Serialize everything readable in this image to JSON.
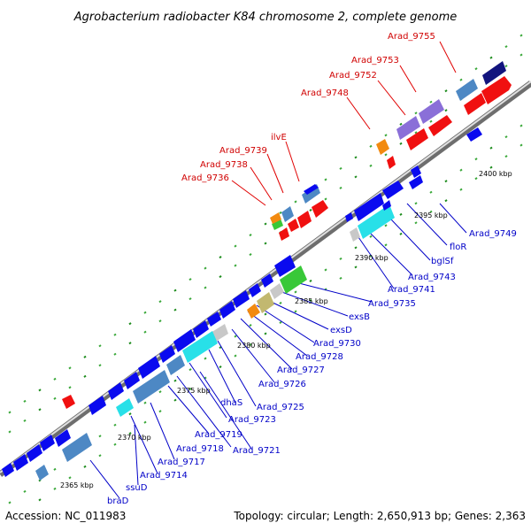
{
  "header": {
    "title": "Agrobacterium radiobacter K84 chromosome 2, complete genome"
  },
  "footer": {
    "accession": "Accession: NC_011983",
    "topology": "Topology: circular; Length: 2,650,913 bp; Genes: 2,363"
  },
  "colors": {
    "blue": "#0a0aef",
    "steel": "#4d88c4",
    "red": "#f01010",
    "purple": "#8a6fd8",
    "navy": "#12147e",
    "cyan": "#28e0e8",
    "green": "#38c838",
    "orange": "#f28a10",
    "olive": "#c2b870",
    "gray": "#c8c8c8",
    "label_red": "#d00000",
    "label_blue": "#0000c8"
  },
  "ticks": [
    "2365 kbp",
    "2370 kbp",
    "2375 kbp",
    "2380 kbp",
    "2385 kbp",
    "2390 kbp",
    "2395 kbp",
    "2400 kbp"
  ],
  "top_labels": [
    "Arad_9755",
    "Arad_9753",
    "Arad_9752",
    "Arad_9748",
    "ilvE",
    "Arad_9739",
    "Arad_9738",
    "Arad_9736"
  ],
  "bottom_labels": [
    "Arad_9749",
    "floR",
    "bglSf",
    "Arad_9743",
    "Arad_9741",
    "Arad_9735",
    "exsB",
    "exsD",
    "Arad_9730",
    "Arad_9728",
    "Arad_9727",
    "Arad_9726",
    "Arad_9725",
    "dhaS",
    "Arad_9723",
    "Arad_9721",
    "Arad_9719",
    "Arad_9718",
    "Arad_9717",
    "Arad_9714",
    "ssuD",
    "braD"
  ]
}
